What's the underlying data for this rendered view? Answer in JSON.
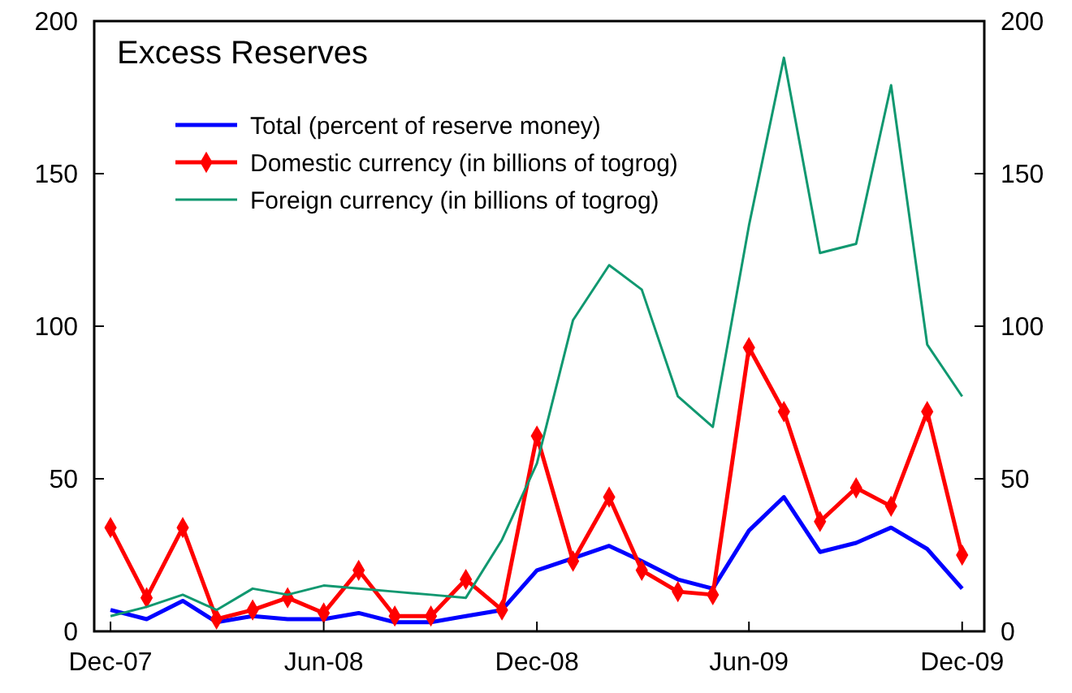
{
  "chart_data": {
    "type": "line",
    "title": "Excess Reserves",
    "x": [
      "2007-12",
      "2008-01",
      "2008-02",
      "2008-03",
      "2008-04",
      "2008-05",
      "2008-06",
      "2008-07",
      "2008-08",
      "2008-09",
      "2008-10",
      "2008-11",
      "2008-12",
      "2009-01",
      "2009-02",
      "2009-03",
      "2009-04",
      "2009-05",
      "2009-06",
      "2009-07",
      "2009-08",
      "2009-09",
      "2009-10",
      "2009-11",
      "2009-12"
    ],
    "series": [
      {
        "name": "Total (percent of reserve money)",
        "color": "#0000ff",
        "marker": "none",
        "values": [
          7,
          4,
          10,
          3,
          5,
          4,
          4,
          6,
          3,
          3,
          5,
          7,
          20,
          24,
          28,
          23,
          17,
          14,
          33,
          44,
          26,
          29,
          34,
          27,
          14
        ]
      },
      {
        "name": "Domestic currency (in billions of togrog)",
        "color": "#ff0000",
        "marker": "diamond",
        "values": [
          34,
          11,
          34,
          4,
          7,
          11,
          6,
          20,
          5,
          5,
          17,
          7,
          64,
          23,
          44,
          20,
          13,
          12,
          93,
          72,
          36,
          47,
          41,
          72,
          25
        ]
      },
      {
        "name": "Foreign currency (in billions of togrog)",
        "color": "#109870",
        "marker": "none",
        "values": [
          5,
          8,
          12,
          7,
          14,
          12,
          15,
          14,
          13,
          12,
          11,
          30,
          55,
          102,
          120,
          112,
          77,
          67,
          133,
          188,
          124,
          127,
          179,
          94,
          77
        ]
      }
    ],
    "xlim": [
      "2007-11-17",
      "2009-12-20"
    ],
    "xticks": [
      {
        "value": "2007-12",
        "label": "Dec-07"
      },
      {
        "value": "2008-06",
        "label": "Jun-08"
      },
      {
        "value": "2008-12",
        "label": "Dec-08"
      },
      {
        "value": "2009-06",
        "label": "Jun-09"
      },
      {
        "value": "2009-12",
        "label": "Dec-09"
      }
    ],
    "ylim": [
      0,
      200
    ],
    "yticks": [
      0,
      50,
      100,
      150,
      200
    ],
    "y2lim": [
      0,
      200
    ],
    "y2ticks": [
      0,
      50,
      100,
      150,
      200
    ],
    "grid": false,
    "legend": "top left",
    "line_style": "solid"
  }
}
